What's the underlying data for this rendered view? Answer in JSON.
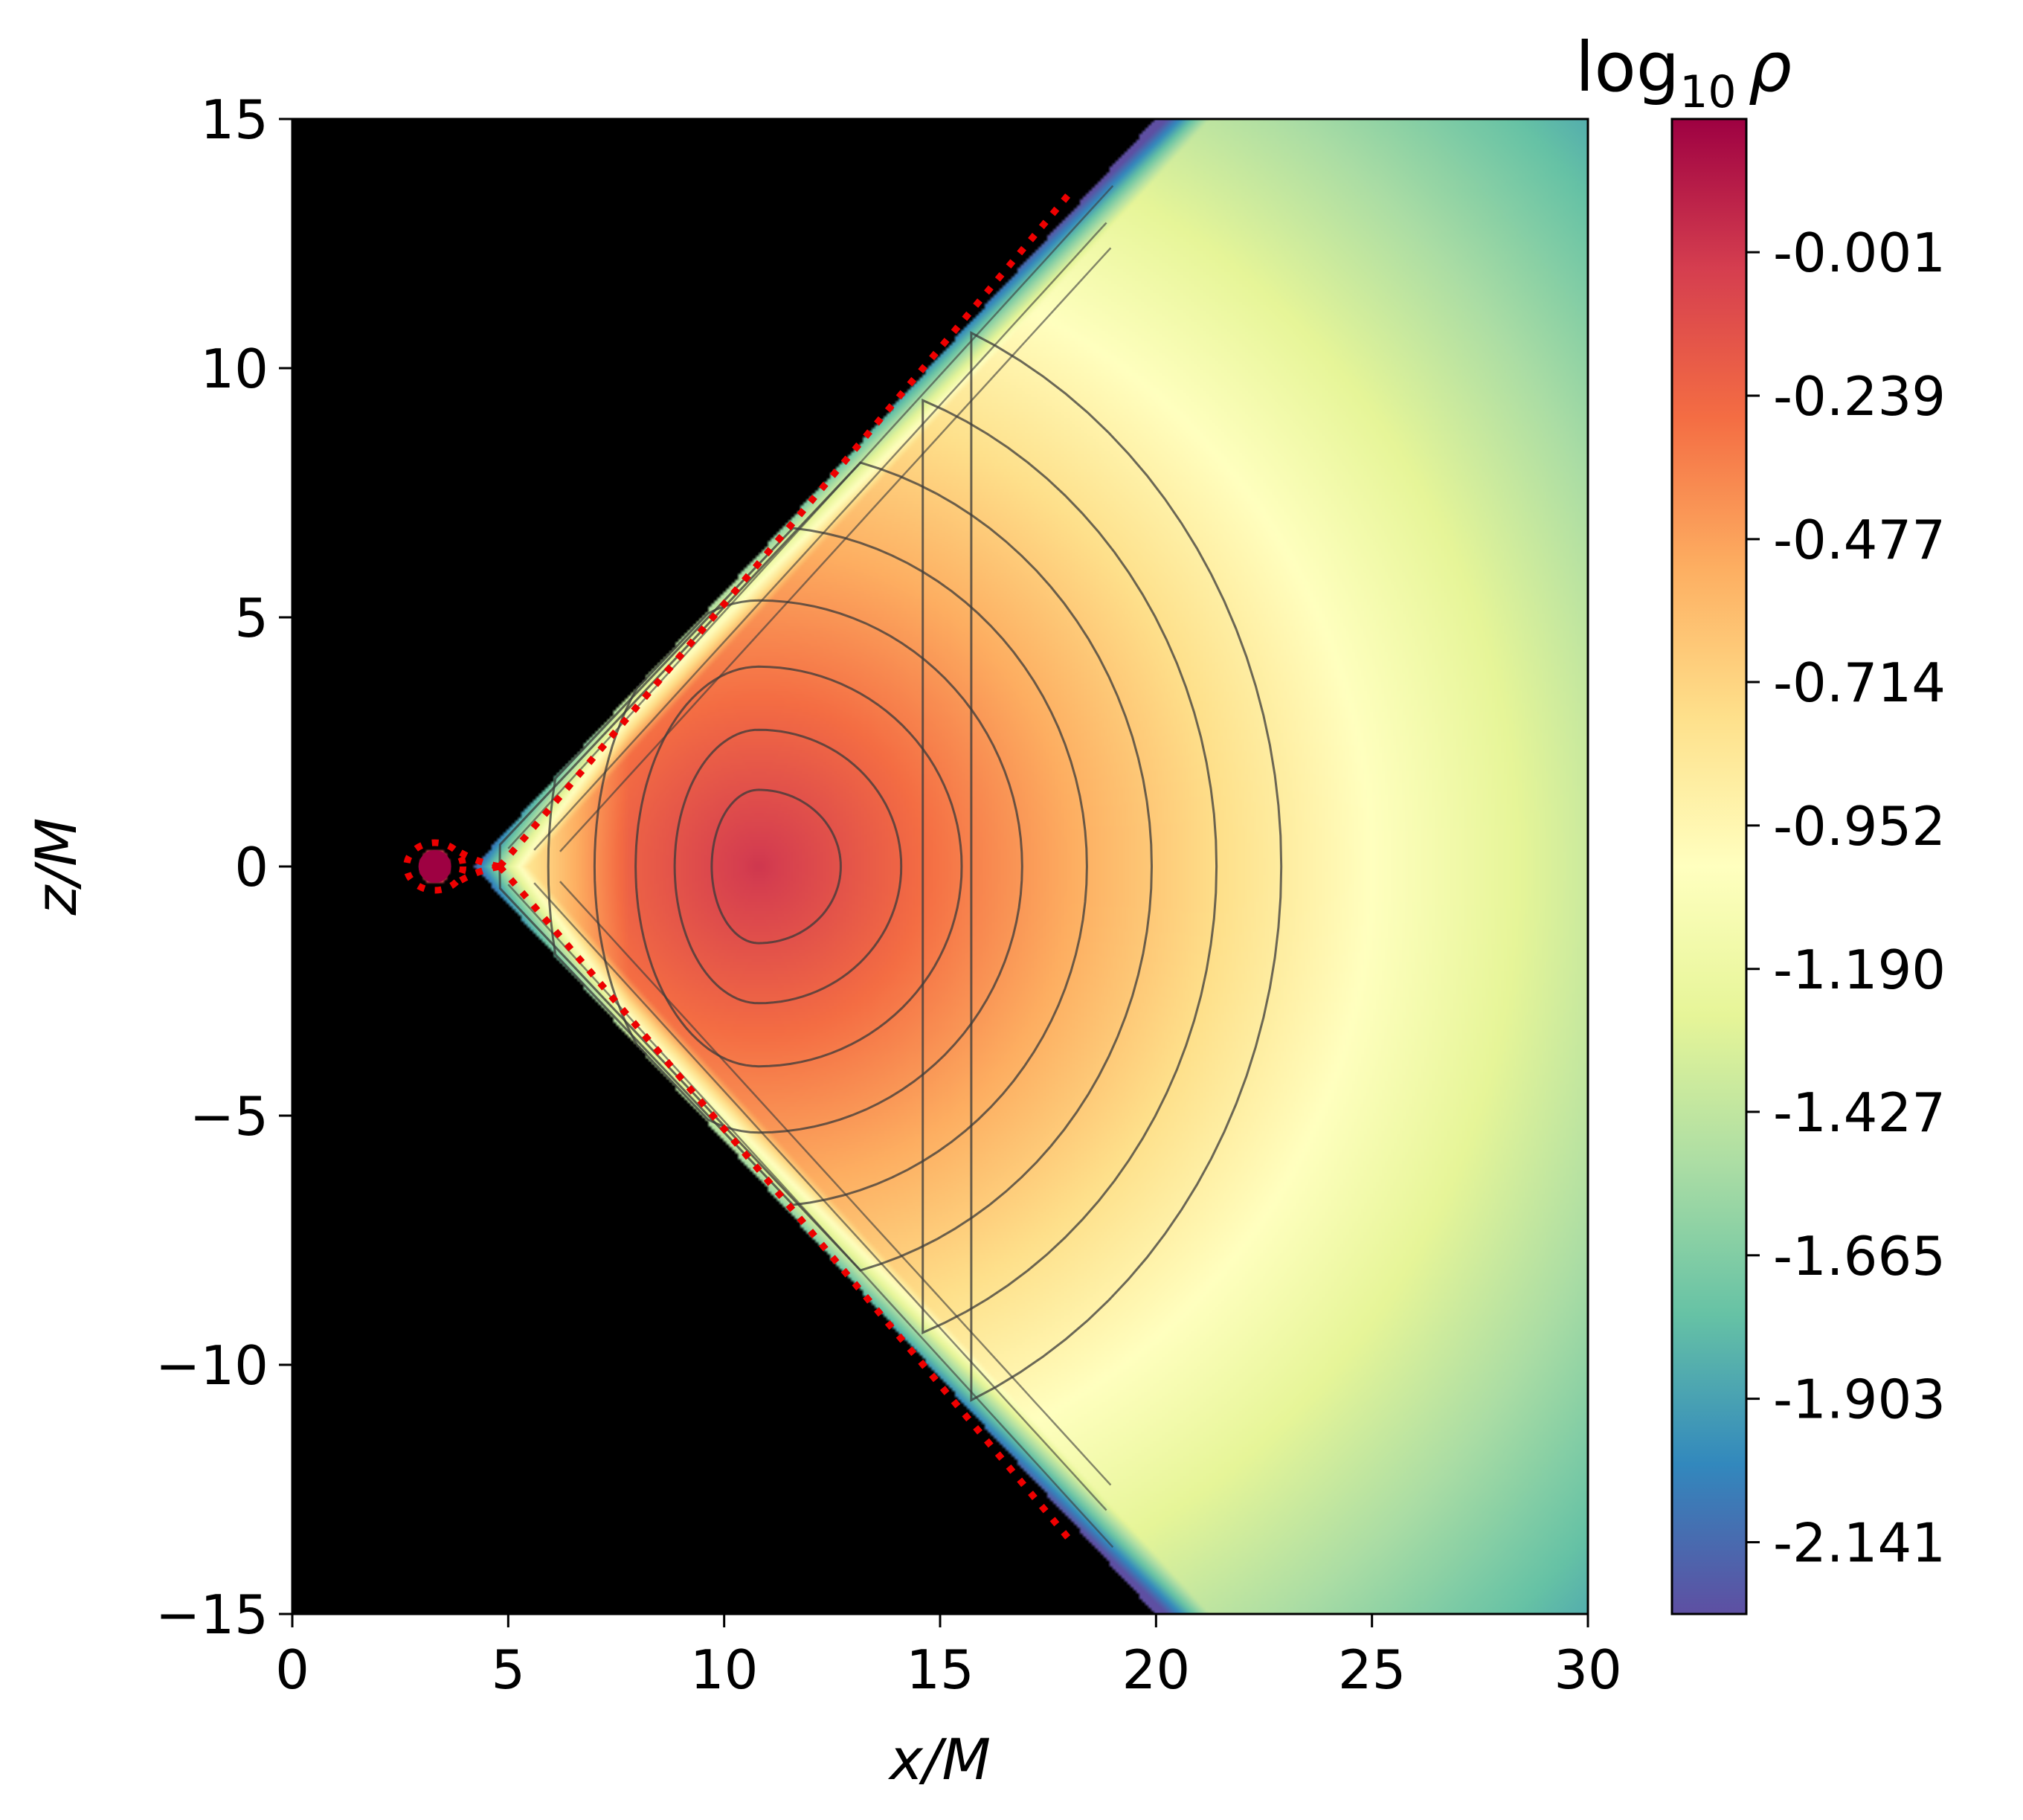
{
  "chart_data": {
    "type": "heatmap",
    "title": "",
    "xlabel": "x/M",
    "ylabel": "z/M",
    "xlim": [
      0,
      30
    ],
    "ylim": [
      -15,
      15
    ],
    "x_ticks": [
      "0",
      "5",
      "10",
      "15",
      "20",
      "25",
      "30"
    ],
    "x_tick_values": [
      0,
      5,
      10,
      15,
      20,
      25,
      30
    ],
    "y_ticks": [
      "15",
      "10",
      "5",
      "0",
      "−5",
      "−10",
      "−15"
    ],
    "y_tick_values": [
      15,
      10,
      5,
      0,
      -5,
      -10,
      -15
    ],
    "colorbar": {
      "label": "log₁₀ ρ",
      "label_base": "log",
      "label_sub": "10",
      "label_var": "ρ",
      "colormap": "Spectral_r",
      "range": [
        -2.26,
        0.22
      ],
      "tick_labels": [
        "-0.001",
        "-0.239",
        "-0.477",
        "-0.714",
        "-0.952",
        "-1.190",
        "-1.427",
        "-1.665",
        "-1.903",
        "-2.141"
      ],
      "tick_values": [
        -0.001,
        -0.239,
        -0.477,
        -0.714,
        -0.952,
        -1.19,
        -1.427,
        -1.665,
        -1.903,
        -2.141
      ]
    },
    "density_peak": {
      "x": 10.8,
      "z": 0.0,
      "log10_rho": 0.0
    },
    "disk_inner_edge_x": 7.8,
    "cusp_x": 4.8,
    "inner_blob": {
      "x": 3.3,
      "z": 0.0
    },
    "background_color": "#000000",
    "contour_line_color": "#3a3a3a",
    "boundary_style": "red dotted",
    "boundary_color": "#ee0000",
    "grid": false
  }
}
